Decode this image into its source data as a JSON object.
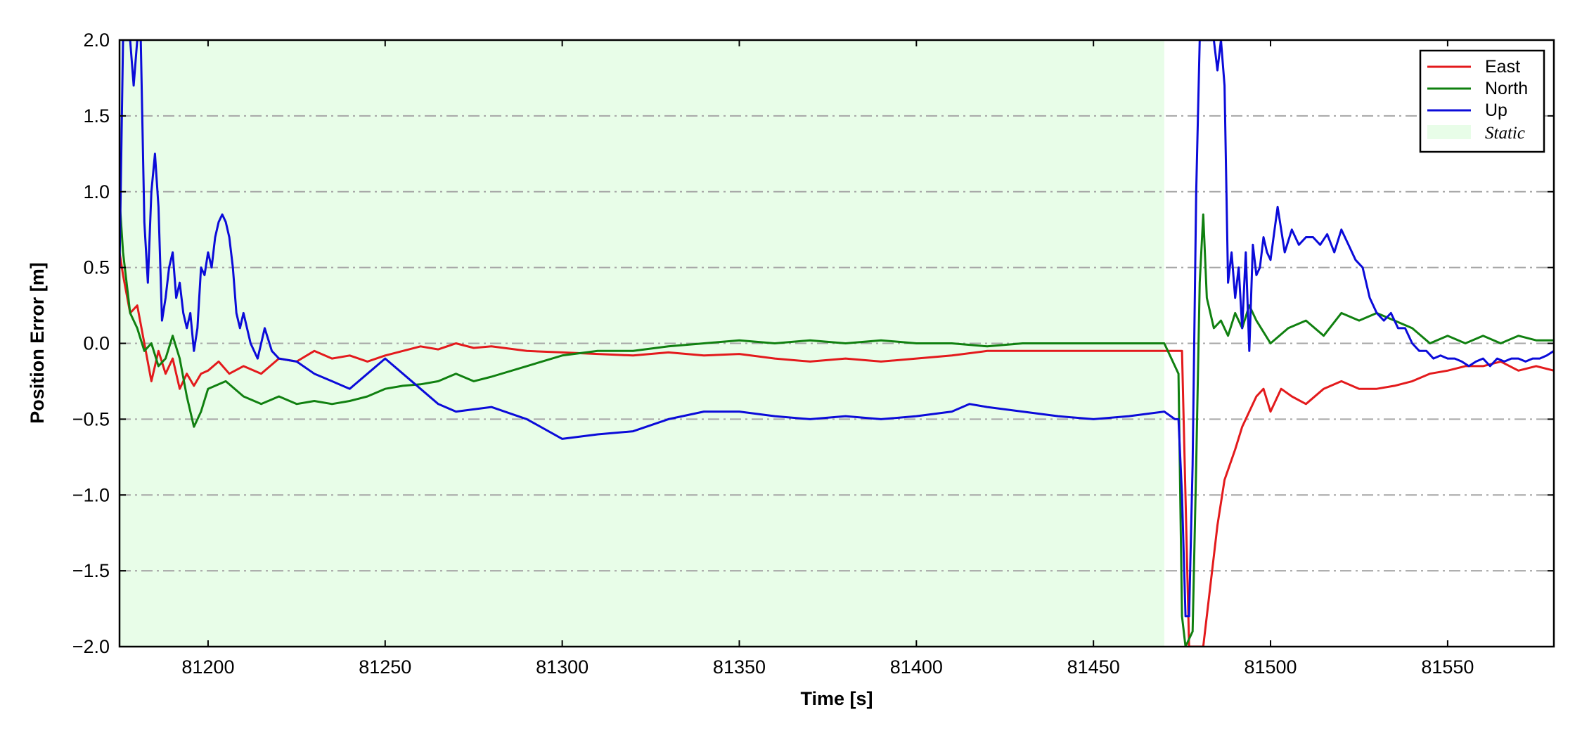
{
  "chart_data": {
    "type": "line",
    "xlabel": "Time [s]",
    "ylabel": "Position Error [m]",
    "xlim": [
      81175,
      81580
    ],
    "ylim": [
      -2.0,
      2.0
    ],
    "x_ticks": [
      81200,
      81250,
      81300,
      81350,
      81400,
      81450,
      81500,
      81550
    ],
    "x_tick_labels": [
      "81200",
      "81250",
      "81300",
      "81350",
      "81400",
      "81450",
      "81500",
      "81550"
    ],
    "y_ticks": [
      -2.0,
      -1.5,
      -1.0,
      -0.5,
      0.0,
      0.5,
      1.0,
      1.5,
      2.0
    ],
    "y_tick_labels": [
      "−2.0",
      "−1.5",
      "−1.0",
      "−0.5",
      "0.0",
      "0.5",
      "1.0",
      "1.5",
      "2.0"
    ],
    "grid": "horizontal dash-dot",
    "legend_position": "top-right",
    "shaded_region": {
      "name": "Static",
      "x_start": 81175,
      "x_end": 81470,
      "color": "#e8fde8"
    },
    "series": [
      {
        "name": "East",
        "color": "#e31a1c",
        "x": [
          81175,
          81176,
          81178,
          81180,
          81182,
          81184,
          81186,
          81188,
          81190,
          81192,
          81194,
          81196,
          81198,
          81200,
          81203,
          81206,
          81210,
          81215,
          81220,
          81225,
          81230,
          81235,
          81240,
          81245,
          81250,
          81255,
          81260,
          81265,
          81270,
          81275,
          81280,
          81290,
          81300,
          81310,
          81320,
          81330,
          81340,
          81350,
          81360,
          81370,
          81380,
          81390,
          81400,
          81410,
          81420,
          81430,
          81440,
          81450,
          81460,
          81470,
          81473,
          81475,
          81477,
          81479,
          81481,
          81483,
          81485,
          81487,
          81490,
          81492,
          81494,
          81496,
          81498,
          81500,
          81503,
          81506,
          81510,
          81515,
          81520,
          81525,
          81530,
          81535,
          81540,
          81545,
          81550,
          81555,
          81560,
          81565,
          81570,
          81575,
          81580
        ],
        "y": [
          0.6,
          0.45,
          0.2,
          0.25,
          0.0,
          -0.25,
          -0.05,
          -0.2,
          -0.1,
          -0.3,
          -0.2,
          -0.28,
          -0.2,
          -0.18,
          -0.12,
          -0.2,
          -0.15,
          -0.2,
          -0.1,
          -0.12,
          -0.05,
          -0.1,
          -0.08,
          -0.12,
          -0.08,
          -0.05,
          -0.02,
          -0.04,
          0.0,
          -0.03,
          -0.02,
          -0.05,
          -0.06,
          -0.07,
          -0.08,
          -0.06,
          -0.08,
          -0.07,
          -0.1,
          -0.12,
          -0.1,
          -0.12,
          -0.1,
          -0.08,
          -0.05,
          -0.05,
          -0.05,
          -0.05,
          -0.05,
          -0.05,
          -0.05,
          -0.05,
          -2.0,
          -2.0,
          -2.0,
          -1.6,
          -1.2,
          -0.9,
          -0.7,
          -0.55,
          -0.45,
          -0.35,
          -0.3,
          -0.45,
          -0.3,
          -0.35,
          -0.4,
          -0.3,
          -0.25,
          -0.3,
          -0.3,
          -0.28,
          -0.25,
          -0.2,
          -0.18,
          -0.15,
          -0.15,
          -0.12,
          -0.18,
          -0.15,
          -0.18
        ]
      },
      {
        "name": "North",
        "color": "#108010",
        "x": [
          81175,
          81176,
          81178,
          81180,
          81182,
          81184,
          81186,
          81188,
          81190,
          81192,
          81194,
          81196,
          81198,
          81200,
          81205,
          81210,
          81215,
          81220,
          81225,
          81230,
          81235,
          81240,
          81245,
          81250,
          81255,
          81260,
          81265,
          81270,
          81275,
          81280,
          81290,
          81300,
          81310,
          81320,
          81330,
          81340,
          81350,
          81360,
          81370,
          81380,
          81390,
          81400,
          81410,
          81420,
          81430,
          81440,
          81450,
          81460,
          81470,
          81474,
          81475,
          81476,
          81478,
          81479,
          81480,
          81481,
          81482,
          81484,
          81486,
          81488,
          81490,
          81492,
          81494,
          81496,
          81500,
          81505,
          81510,
          81515,
          81520,
          81525,
          81530,
          81535,
          81540,
          81545,
          81550,
          81555,
          81560,
          81565,
          81570,
          81575,
          81580
        ],
        "y": [
          0.95,
          0.6,
          0.2,
          0.1,
          -0.05,
          0.0,
          -0.15,
          -0.1,
          0.05,
          -0.1,
          -0.35,
          -0.55,
          -0.45,
          -0.3,
          -0.25,
          -0.35,
          -0.4,
          -0.35,
          -0.4,
          -0.38,
          -0.4,
          -0.38,
          -0.35,
          -0.3,
          -0.28,
          -0.27,
          -0.25,
          -0.2,
          -0.25,
          -0.22,
          -0.15,
          -0.08,
          -0.05,
          -0.05,
          -0.02,
          0.0,
          0.02,
          0.0,
          0.02,
          0.0,
          0.02,
          0.0,
          0.0,
          -0.02,
          0.0,
          0.0,
          0.0,
          0.0,
          0.0,
          -0.2,
          -1.8,
          -2.0,
          -1.9,
          -0.8,
          0.4,
          0.85,
          0.3,
          0.1,
          0.15,
          0.05,
          0.2,
          0.1,
          0.25,
          0.15,
          0.0,
          0.1,
          0.15,
          0.05,
          0.2,
          0.15,
          0.2,
          0.15,
          0.1,
          0.0,
          0.05,
          0.0,
          0.05,
          0.0,
          0.05,
          0.02,
          0.02
        ]
      },
      {
        "name": "Up",
        "color": "#0b0bd9",
        "x": [
          81175,
          81176,
          81177,
          81178,
          81179,
          81180,
          81181,
          81182,
          81183,
          81184,
          81185,
          81186,
          81187,
          81188,
          81189,
          81190,
          81191,
          81192,
          81193,
          81194,
          81195,
          81196,
          81197,
          81198,
          81199,
          81200,
          81201,
          81202,
          81203,
          81204,
          81205,
          81206,
          81207,
          81208,
          81209,
          81210,
          81212,
          81214,
          81216,
          81218,
          81220,
          81225,
          81230,
          81235,
          81240,
          81245,
          81250,
          81255,
          81260,
          81265,
          81270,
          81280,
          81290,
          81300,
          81310,
          81320,
          81330,
          81340,
          81350,
          81360,
          81370,
          81380,
          81390,
          81400,
          81410,
          81415,
          81420,
          81430,
          81440,
          81450,
          81460,
          81470,
          81473,
          81474,
          81475,
          81476,
          81477,
          81478,
          81479,
          81480,
          81481,
          81482,
          81483,
          81484,
          81485,
          81486,
          81487,
          81488,
          81489,
          81490,
          81491,
          81492,
          81493,
          81494,
          81495,
          81496,
          81497,
          81498,
          81499,
          81500,
          81502,
          81504,
          81506,
          81508,
          81510,
          81512,
          81514,
          81516,
          81518,
          81520,
          81522,
          81524,
          81526,
          81528,
          81530,
          81532,
          81534,
          81536,
          81538,
          81540,
          81542,
          81544,
          81546,
          81548,
          81550,
          81552,
          81554,
          81556,
          81558,
          81560,
          81562,
          81564,
          81566,
          81568,
          81570,
          81572,
          81574,
          81576,
          81578,
          81580
        ],
        "y": [
          0.5,
          2.0,
          2.0,
          2.0,
          1.7,
          2.0,
          2.0,
          0.8,
          0.4,
          1.0,
          1.25,
          0.9,
          0.15,
          0.3,
          0.5,
          0.6,
          0.3,
          0.4,
          0.2,
          0.1,
          0.2,
          -0.05,
          0.1,
          0.5,
          0.45,
          0.6,
          0.5,
          0.7,
          0.8,
          0.85,
          0.8,
          0.7,
          0.5,
          0.2,
          0.1,
          0.2,
          0.0,
          -0.1,
          0.1,
          -0.05,
          -0.1,
          -0.12,
          -0.2,
          -0.25,
          -0.3,
          -0.2,
          -0.1,
          -0.2,
          -0.3,
          -0.4,
          -0.45,
          -0.42,
          -0.5,
          -0.63,
          -0.6,
          -0.58,
          -0.5,
          -0.45,
          -0.45,
          -0.48,
          -0.5,
          -0.48,
          -0.5,
          -0.48,
          -0.45,
          -0.4,
          -0.42,
          -0.45,
          -0.48,
          -0.5,
          -0.48,
          -0.45,
          -0.5,
          -0.5,
          -1.0,
          -1.8,
          -1.8,
          -0.8,
          1.0,
          2.0,
          2.0,
          2.0,
          2.0,
          2.0,
          1.8,
          2.0,
          1.7,
          0.4,
          0.6,
          0.3,
          0.5,
          0.1,
          0.6,
          -0.05,
          0.65,
          0.45,
          0.5,
          0.7,
          0.6,
          0.55,
          0.9,
          0.6,
          0.75,
          0.65,
          0.7,
          0.7,
          0.65,
          0.72,
          0.6,
          0.75,
          0.65,
          0.55,
          0.5,
          0.3,
          0.2,
          0.15,
          0.2,
          0.1,
          0.1,
          0.0,
          -0.05,
          -0.05,
          -0.1,
          -0.08,
          -0.1,
          -0.1,
          -0.12,
          -0.15,
          -0.12,
          -0.1,
          -0.15,
          -0.1,
          -0.12,
          -0.1,
          -0.1,
          -0.12,
          -0.1,
          -0.1,
          -0.08,
          -0.05
        ]
      }
    ]
  }
}
